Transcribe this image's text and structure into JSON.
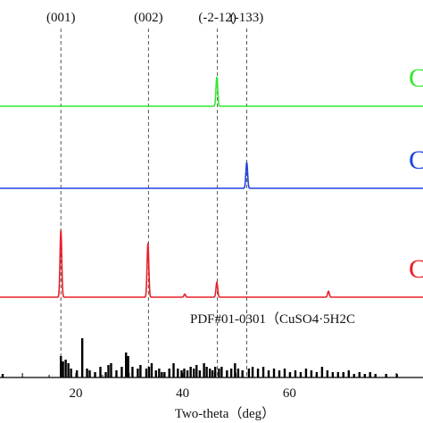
{
  "chart_data": {
    "type": "line",
    "title": "",
    "xlabel": "Two-theta（deg）",
    "ylabel": "",
    "xlim": [
      5.8,
      85
    ],
    "x_ticks": [
      20,
      40,
      60
    ],
    "reference_lines": [
      {
        "label": "(001)",
        "x": 17.2
      },
      {
        "label": "(002)",
        "x": 33.6
      },
      {
        "label": "(-2-12)",
        "x": 46.5
      },
      {
        "label": "(-133)",
        "x": 52.0
      }
    ],
    "series": [
      {
        "name": "C",
        "color": "#33e833",
        "peaks": [
          {
            "x": 46.4,
            "height": 0.6
          }
        ]
      },
      {
        "name": "C",
        "color": "#2244dd",
        "peaks": [
          {
            "x": 52.0,
            "height": 0.53
          }
        ]
      },
      {
        "name": "C",
        "color": "#e8202a",
        "peaks": [
          {
            "x": 17.2,
            "height": 1.37
          },
          {
            "x": 33.5,
            "height": 1.1
          },
          {
            "x": 40.4,
            "height": 0.06
          },
          {
            "x": 46.4,
            "height": 0.3
          },
          {
            "x": 67.3,
            "height": 0.12
          }
        ]
      }
    ],
    "reference_pattern": {
      "label": "PDF#01-0301（CuSO4·5H2C",
      "color": "#000000",
      "sticks": [
        [
          6.3,
          4
        ],
        [
          17.2,
          24
        ],
        [
          17.6,
          18
        ],
        [
          18.1,
          20
        ],
        [
          18.6,
          16
        ],
        [
          19.1,
          10
        ],
        [
          20.2,
          8
        ],
        [
          21.2,
          44
        ],
        [
          22.1,
          10
        ],
        [
          22.6,
          8
        ],
        [
          23.6,
          6
        ],
        [
          24.6,
          12
        ],
        [
          25.6,
          6
        ],
        [
          26.1,
          14
        ],
        [
          26.6,
          16
        ],
        [
          27.6,
          8
        ],
        [
          28.6,
          12
        ],
        [
          29.4,
          28
        ],
        [
          29.8,
          24
        ],
        [
          30.6,
          12
        ],
        [
          31.6,
          10
        ],
        [
          32.1,
          14
        ],
        [
          33.2,
          10
        ],
        [
          33.7,
          12
        ],
        [
          34.2,
          16
        ],
        [
          35.0,
          8
        ],
        [
          35.6,
          10
        ],
        [
          36.1,
          6
        ],
        [
          36.6,
          6
        ],
        [
          37.5,
          10
        ],
        [
          38.3,
          16
        ],
        [
          39.1,
          10
        ],
        [
          39.8,
          8
        ],
        [
          40.3,
          10
        ],
        [
          40.9,
          8
        ],
        [
          41.5,
          12
        ],
        [
          42.1,
          10
        ],
        [
          42.6,
          14
        ],
        [
          43.2,
          8
        ],
        [
          44.0,
          16
        ],
        [
          44.5,
          12
        ],
        [
          45.1,
          10
        ],
        [
          45.6,
          8
        ],
        [
          46.1,
          12
        ],
        [
          46.8,
          10
        ],
        [
          47.3,
          12
        ],
        [
          48.3,
          8
        ],
        [
          49.1,
          10
        ],
        [
          49.8,
          16
        ],
        [
          50.4,
          10
        ],
        [
          51.2,
          8
        ],
        [
          52.4,
          10
        ],
        [
          53.1,
          12
        ],
        [
          54.1,
          10
        ],
        [
          55.1,
          12
        ],
        [
          56.1,
          8
        ],
        [
          57.1,
          10
        ],
        [
          58.1,
          8
        ],
        [
          59.1,
          10
        ],
        [
          60.1,
          6
        ],
        [
          61.1,
          8
        ],
        [
          62.1,
          6
        ],
        [
          63.1,
          10
        ],
        [
          64.1,
          8
        ],
        [
          65.1,
          6
        ],
        [
          66.1,
          12
        ],
        [
          67.1,
          8
        ],
        [
          68.1,
          6
        ],
        [
          69.1,
          6
        ],
        [
          70.1,
          6
        ],
        [
          71.1,
          8
        ],
        [
          72.1,
          4
        ],
        [
          73.1,
          6
        ],
        [
          74.1,
          4
        ],
        [
          75.1,
          6
        ],
        [
          76.1,
          4
        ],
        [
          78.1,
          4
        ],
        [
          80.1,
          4
        ]
      ]
    }
  }
}
